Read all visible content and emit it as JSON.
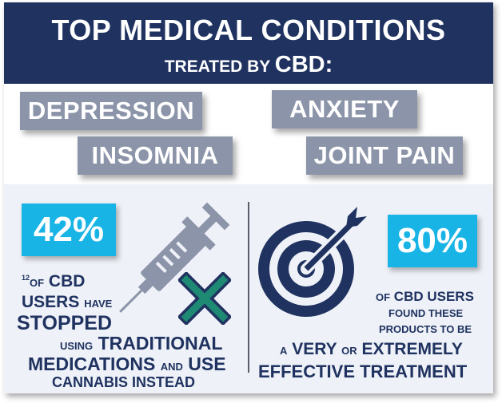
{
  "header": {
    "title": "TOP MEDICAL CONDITIONS",
    "subtitle_prefix": "TREATED BY",
    "subtitle_cbd": "CBD:"
  },
  "conditions": [
    "DEPRESSION",
    "ANXIETY",
    "INSOMNIA",
    "JOINT PAIN"
  ],
  "left_stat": {
    "value": "42%",
    "footnote": "12",
    "line1_small": "OF",
    "line1_big": "CBD",
    "line2_big": "USERS",
    "line2_small": "HAVE",
    "line3_big": "STOPPED",
    "line4_small": "USING",
    "line4_big": "TRADITIONAL",
    "line5_big_a": "MEDICATIONS",
    "line5_small": "AND",
    "line5_big_b": "USE",
    "line6_big": "CANNABIS INSTEAD"
  },
  "right_stat": {
    "value": "80%",
    "line1_small": "OF",
    "line1_big": "CBD USERS",
    "line2_small": "FOUND THESE",
    "line3_small": "PRODUCTS TO BE",
    "line4_small_a": "A",
    "line4_big_a": "VERY",
    "line4_small_b": "OR",
    "line4_big_b": "EXTREMELY",
    "line5_big": "EFFECTIVE TREATMENT"
  },
  "icons": [
    "syringe-icon",
    "x-mark-icon",
    "target-icon"
  ],
  "colors": {
    "header_bg": "#1f3260",
    "tag_bg": "#8b94a8",
    "stat_bg": "#19b4e6",
    "panel_bg": "#eef1f7",
    "text_navy": "#1f3260",
    "x_green": "#1e8a73"
  }
}
